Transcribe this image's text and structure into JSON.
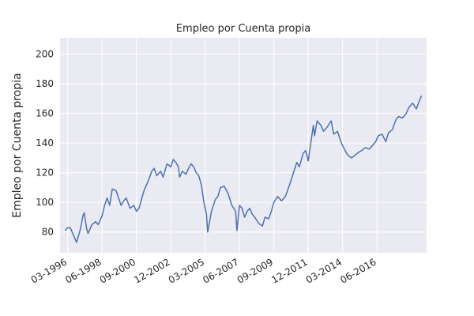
{
  "chart_data": {
    "type": "line",
    "title": "Empleo por Cuenta propia",
    "xlabel": "",
    "ylabel": "Empleo por Cuenta propia",
    "xlim": [
      "1995-09",
      "2019-09"
    ],
    "ylim": [
      66,
      211
    ],
    "grid": true,
    "x_ticks": [
      "03-1996",
      "06-1998",
      "09-2000",
      "12-2002",
      "03-2005",
      "06-2007",
      "09-2009",
      "12-2011",
      "03-2014",
      "06-2016"
    ],
    "y_ticks": [
      80,
      100,
      120,
      140,
      160,
      180,
      200
    ],
    "colors": {
      "line": "#4c72b0",
      "plot_bg": "#eaeaf2",
      "grid": "#ffffff"
    },
    "series": [
      {
        "name": "",
        "points": [
          [
            "1996-01",
            81
          ],
          [
            "1996-03",
            83
          ],
          [
            "1996-05",
            83
          ],
          [
            "1996-07",
            79
          ],
          [
            "1996-10",
            73
          ],
          [
            "1997-01",
            82
          ],
          [
            "1997-03",
            91
          ],
          [
            "1997-04",
            93
          ],
          [
            "1997-06",
            82
          ],
          [
            "1997-07",
            79
          ],
          [
            "1997-10",
            85
          ],
          [
            "1998-01",
            87
          ],
          [
            "1998-03",
            85
          ],
          [
            "1998-06",
            91
          ],
          [
            "1998-08",
            98
          ],
          [
            "1998-10",
            103
          ],
          [
            "1998-12",
            98
          ],
          [
            "1999-02",
            109
          ],
          [
            "1999-05",
            108
          ],
          [
            "1999-07",
            103
          ],
          [
            "1999-09",
            98
          ],
          [
            "1999-11",
            101
          ],
          [
            "2000-01",
            103
          ],
          [
            "2000-04",
            96
          ],
          [
            "2000-07",
            98
          ],
          [
            "2000-09",
            94
          ],
          [
            "2000-11",
            96
          ],
          [
            "2001-01",
            102
          ],
          [
            "2001-03",
            108
          ],
          [
            "2001-05",
            112
          ],
          [
            "2001-07",
            116
          ],
          [
            "2001-09",
            121
          ],
          [
            "2001-11",
            123
          ],
          [
            "2002-01",
            118
          ],
          [
            "2002-04",
            121
          ],
          [
            "2002-06",
            117
          ],
          [
            "2002-09",
            126
          ],
          [
            "2002-12",
            124
          ],
          [
            "2003-02",
            129
          ],
          [
            "2003-04",
            127
          ],
          [
            "2003-06",
            124
          ],
          [
            "2003-07",
            117
          ],
          [
            "2003-09",
            121
          ],
          [
            "2003-12",
            119
          ],
          [
            "2004-02",
            123
          ],
          [
            "2004-04",
            126
          ],
          [
            "2004-06",
            124
          ],
          [
            "2004-08",
            120
          ],
          [
            "2004-10",
            118
          ],
          [
            "2004-12",
            112
          ],
          [
            "2005-02",
            100
          ],
          [
            "2005-04",
            92
          ],
          [
            "2005-05",
            80
          ],
          [
            "2005-08",
            94
          ],
          [
            "2005-11",
            102
          ],
          [
            "2006-01",
            104
          ],
          [
            "2006-03",
            110
          ],
          [
            "2006-06",
            111
          ],
          [
            "2006-09",
            106
          ],
          [
            "2006-12",
            98
          ],
          [
            "2007-03",
            94
          ],
          [
            "2007-04",
            81
          ],
          [
            "2007-06",
            98
          ],
          [
            "2007-08",
            96
          ],
          [
            "2007-10",
            90
          ],
          [
            "2007-12",
            94
          ],
          [
            "2008-02",
            96
          ],
          [
            "2008-04",
            92
          ],
          [
            "2008-06",
            90
          ],
          [
            "2008-09",
            86
          ],
          [
            "2008-12",
            84
          ],
          [
            "2009-02",
            90
          ],
          [
            "2009-05",
            89
          ],
          [
            "2009-07",
            94
          ],
          [
            "2009-09",
            100
          ],
          [
            "2009-12",
            104
          ],
          [
            "2010-03",
            101
          ],
          [
            "2010-06",
            104
          ],
          [
            "2010-09",
            111
          ],
          [
            "2010-12",
            119
          ],
          [
            "2011-03",
            127
          ],
          [
            "2011-05",
            124
          ],
          [
            "2011-08",
            133
          ],
          [
            "2011-10",
            135
          ],
          [
            "2011-12",
            128
          ],
          [
            "2012-02",
            140
          ],
          [
            "2012-04",
            152
          ],
          [
            "2012-05",
            145
          ],
          [
            "2012-07",
            155
          ],
          [
            "2012-10",
            152
          ],
          [
            "2012-12",
            148
          ],
          [
            "2013-03",
            151
          ],
          [
            "2013-06",
            155
          ],
          [
            "2013-08",
            146
          ],
          [
            "2013-11",
            148
          ],
          [
            "2014-02",
            140
          ],
          [
            "2014-05",
            135
          ],
          [
            "2014-07",
            132
          ],
          [
            "2014-10",
            130
          ],
          [
            "2015-01",
            132
          ],
          [
            "2015-04",
            134
          ],
          [
            "2015-06",
            135
          ],
          [
            "2015-09",
            137
          ],
          [
            "2015-12",
            136
          ],
          [
            "2016-03",
            139
          ],
          [
            "2016-05",
            141
          ],
          [
            "2016-07",
            145
          ],
          [
            "2016-10",
            146
          ],
          [
            "2017-01",
            141
          ],
          [
            "2017-03",
            147
          ],
          [
            "2017-06",
            149
          ],
          [
            "2017-09",
            156
          ],
          [
            "2017-11",
            158
          ],
          [
            "2018-02",
            157
          ],
          [
            "2018-05",
            160
          ],
          [
            "2018-07",
            164
          ],
          [
            "2018-10",
            167
          ],
          [
            "2019-01",
            163
          ],
          [
            "2019-03",
            168
          ],
          [
            "2019-05",
            172
          ]
        ]
      }
    ]
  }
}
